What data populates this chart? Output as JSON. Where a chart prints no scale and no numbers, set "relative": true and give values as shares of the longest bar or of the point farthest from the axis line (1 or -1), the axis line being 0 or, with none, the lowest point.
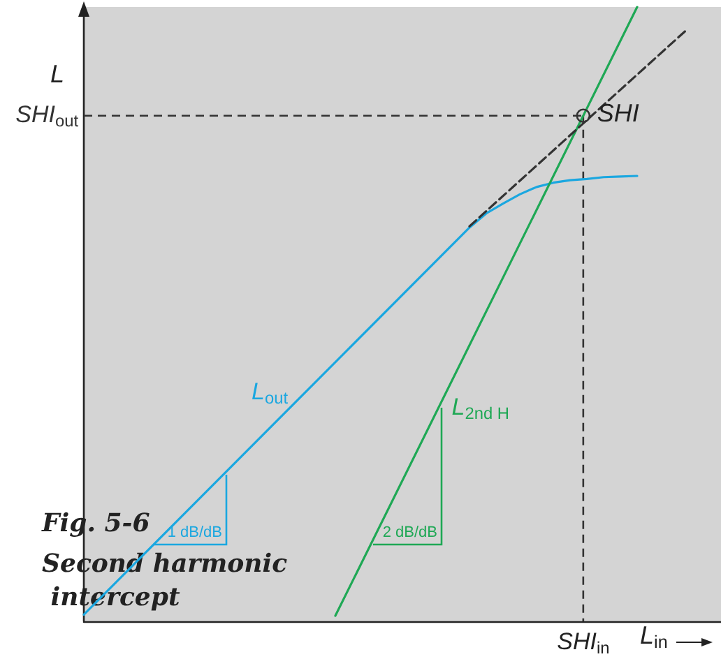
{
  "chart_data": {
    "type": "line",
    "title": "Fig. 5-6",
    "subtitle": "Second harmonic intercept",
    "xlabel": "L$_{in}$",
    "ylabel": "L",
    "relative": true,
    "tick_labels": false,
    "categories": [
      null,
      null,
      null,
      null,
      null,
      null,
      null,
      null,
      null,
      null,
      null,
      null,
      null,
      null,
      null,
      null,
      null,
      null,
      null,
      null,
      null,
      null,
      null,
      null,
      null,
      null,
      null,
      null,
      null,
      null,
      null,
      null,
      null,
      null,
      null,
      null,
      null,
      null,
      null
    ],
    "series": [
      {
        "name": "L$_{out}$",
        "color": "#1aa7e0",
        "values": [
          0.011,
          null,
          null,
          null,
          null,
          null,
          null,
          null,
          null,
          null,
          null,
          null,
          null,
          null,
          null,
          null,
          null,
          null,
          null,
          null,
          null,
          null,
          null,
          0.641,
          0.664,
          0.68,
          0.695,
          0.707,
          0.714,
          0.718,
          0.72,
          0.723,
          0.724,
          0.725,
          null,
          null,
          null,
          null,
          null
        ]
      },
      {
        "name": "L$_{2nd H}$",
        "color": "#1fa855",
        "values": [
          null,
          null,
          null,
          null,
          null,
          null,
          null,
          null,
          null,
          null,
          null,
          null,
          null,
          null,
          null,
          0.009,
          null,
          null,
          null,
          null,
          null,
          null,
          null,
          null,
          null,
          null,
          null,
          null,
          null,
          null,
          null,
          null,
          null,
          1,
          null,
          null,
          null,
          null,
          null
        ]
      },
      {
        "color": "#333333",
        "line_style": "dashed",
        "values": [
          null,
          null,
          null,
          null,
          null,
          null,
          null,
          null,
          null,
          null,
          null,
          null,
          null,
          null,
          null,
          null,
          null,
          null,
          null,
          null,
          null,
          null,
          null,
          0.643,
          null,
          null,
          null,
          null,
          null,
          null,
          null,
          null,
          null,
          null,
          null,
          null,
          0.964,
          null,
          null
        ]
      }
    ],
    "ref_lines": [
      {
        "axis": "y",
        "value": 0.823,
        "label": "SHI$_{out}$",
        "color": "#333333",
        "line_style": "dashed"
      }
    ],
    "annotations": [
      "SHI",
      "SHI$_{in}$",
      "1 dB/dB",
      "2 dB/dB"
    ]
  }
}
